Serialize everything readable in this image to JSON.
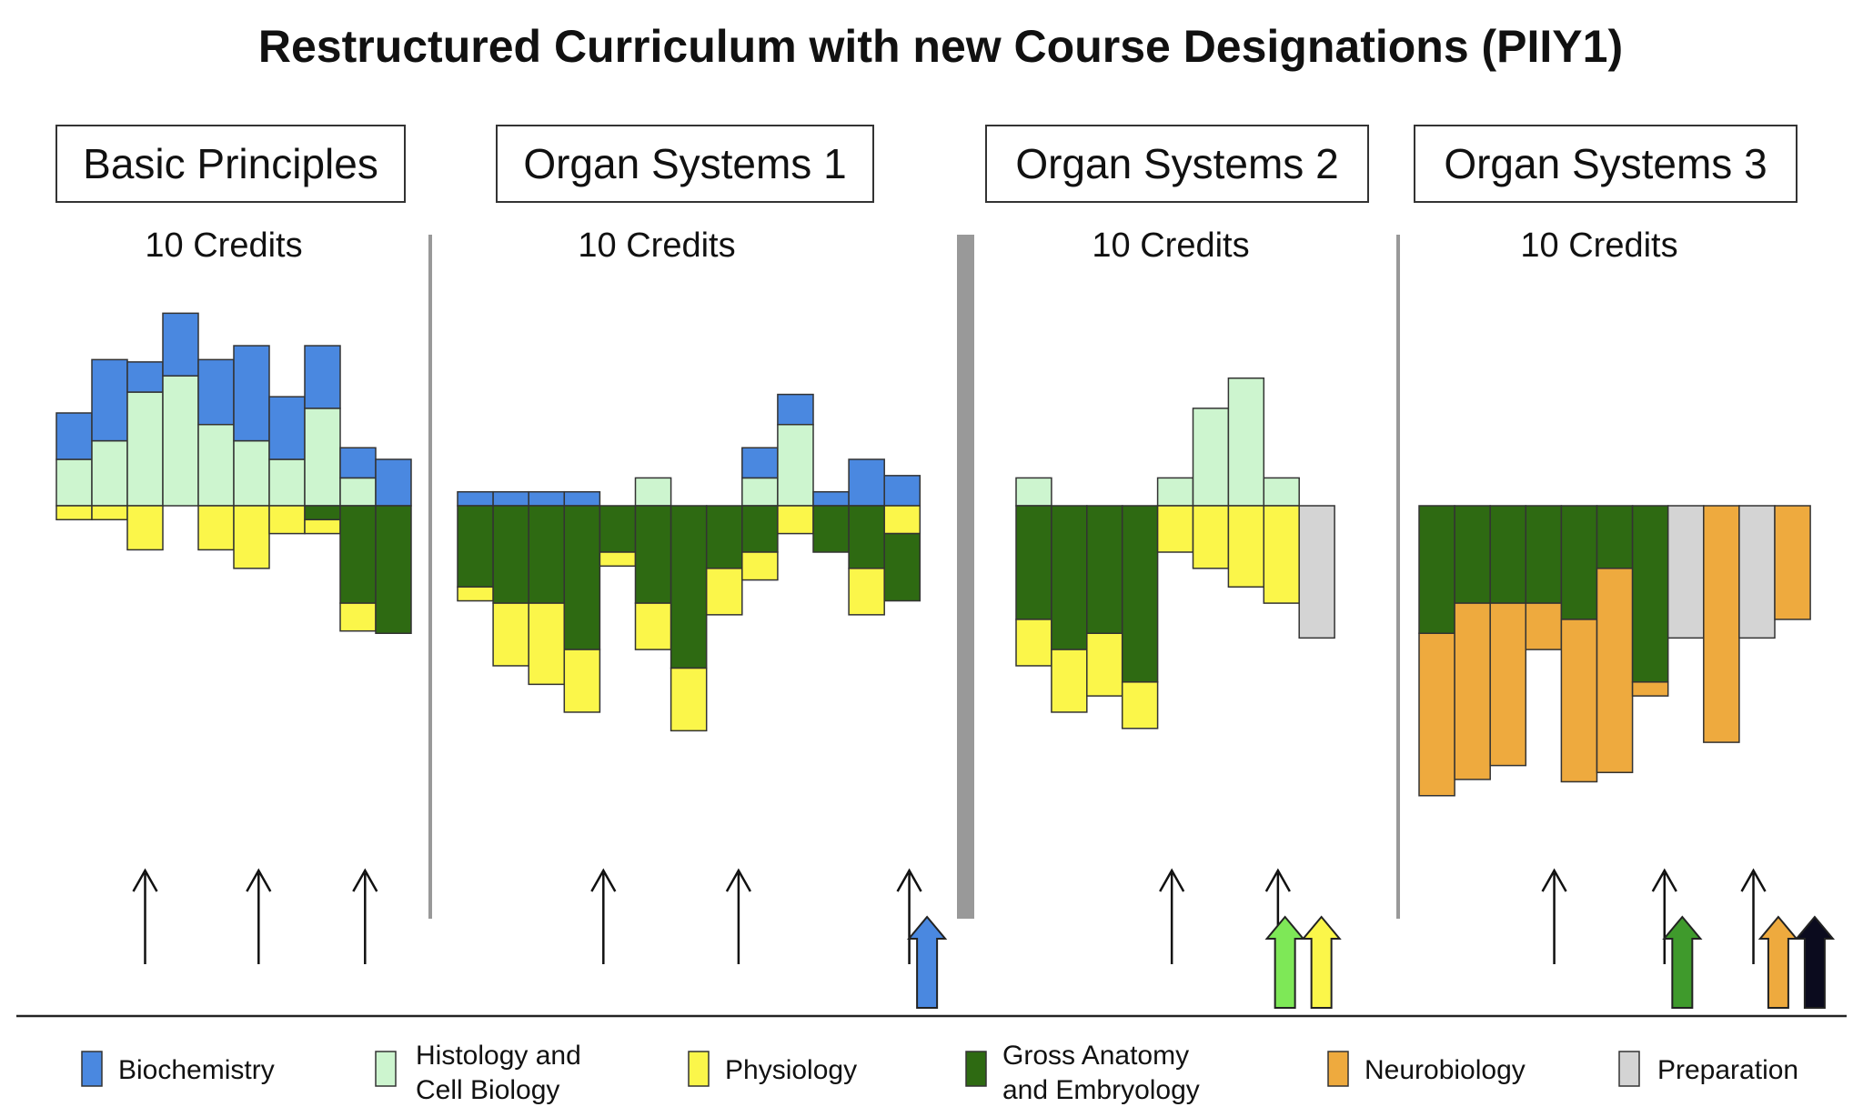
{
  "chart_data": {
    "type": "bar",
    "title": "Restructured Curriculum with new Course Designations (PIIY1)",
    "subjects": [
      {
        "key": "bio",
        "label": "Biochemistry",
        "color": "#4a88e0"
      },
      {
        "key": "hist",
        "label": "Histology and Cell Biology",
        "color": "#cdf5cf"
      },
      {
        "key": "phys",
        "label": "Physiology",
        "color": "#fbf64a"
      },
      {
        "key": "anat",
        "label": "Gross Anatomy and Embryology",
        "color": "#2e6a12"
      },
      {
        "key": "neuro",
        "label": "Neurobiology",
        "color": "#eeaa3e"
      },
      {
        "key": "prep",
        "label": "Preparation",
        "color": "#d4d4d4"
      }
    ],
    "blocks": [
      {
        "name": "Basic Principles",
        "credits": "10 Credits",
        "weeks": [
          {
            "up": {
              "hist": 2.0,
              "bio": 2.0
            },
            "down": {
              "phys": 0.6
            }
          },
          {
            "up": {
              "hist": 2.8,
              "bio": 3.5
            },
            "down": {
              "phys": 0.6
            }
          },
          {
            "up": {
              "hist": 4.9,
              "bio": 1.3
            },
            "down": {
              "phys": 1.9
            }
          },
          {
            "up": {
              "hist": 5.6,
              "bio": 2.7
            },
            "down": {}
          },
          {
            "up": {
              "hist": 3.5,
              "bio": 2.8
            },
            "down": {
              "phys": 1.9
            }
          },
          {
            "up": {
              "hist": 2.8,
              "bio": 4.1
            },
            "down": {
              "phys": 2.7
            }
          },
          {
            "up": {
              "hist": 2.0,
              "bio": 2.7
            },
            "down": {
              "phys": 1.2
            }
          },
          {
            "up": {
              "hist": 4.2,
              "bio": 2.7
            },
            "down": {
              "anat": 0.6,
              "phys": 0.6
            }
          },
          {
            "up": {
              "hist": 1.2,
              "bio": 1.3
            },
            "down": {
              "anat": 4.2,
              "phys": 1.2
            }
          },
          {
            "up": {
              "bio": 2.0
            },
            "down": {
              "anat": 5.5
            }
          }
        ]
      },
      {
        "name": "Organ Systems 1",
        "credits": "10 Credits",
        "weeks": [
          {
            "up": {
              "bio": 0.6
            },
            "down": {
              "anat": 3.5,
              "phys": 0.6
            }
          },
          {
            "up": {
              "bio": 0.6
            },
            "down": {
              "anat": 4.2,
              "phys": 2.7
            }
          },
          {
            "up": {
              "bio": 0.6
            },
            "down": {
              "anat": 4.2,
              "phys": 3.5
            }
          },
          {
            "up": {
              "bio": 0.6
            },
            "down": {
              "anat": 6.2,
              "phys": 2.7
            }
          },
          {
            "up": {},
            "down": {
              "anat": 2.0,
              "phys": 0.6
            }
          },
          {
            "up": {
              "hist": 1.2
            },
            "down": {
              "anat": 4.2,
              "phys": 2.0
            }
          },
          {
            "up": {},
            "down": {
              "anat": 7.0,
              "phys": 2.7
            }
          },
          {
            "up": {},
            "down": {
              "anat": 2.7,
              "phys": 2.0
            }
          },
          {
            "up": {
              "hist": 1.2,
              "bio": 1.3
            },
            "down": {
              "anat": 2.0,
              "phys": 1.2
            }
          },
          {
            "up": {
              "hist": 3.5,
              "bio": 1.3
            },
            "down": {
              "phys": 1.2
            }
          },
          {
            "up": {
              "bio": 0.6
            },
            "down": {
              "anat": 2.0
            }
          },
          {
            "up": {
              "bio": 2.0
            },
            "down": {
              "anat": 2.7,
              "phys": 2.0
            }
          },
          {
            "up": {
              "bio": 1.3
            },
            "down": {
              "phys": 1.2,
              "anat": 2.9
            }
          }
        ]
      },
      {
        "name": "Organ Systems 2",
        "credits": "10 Credits",
        "weeks": [
          {
            "up": {
              "hist": 1.2
            },
            "down": {
              "anat": 4.9,
              "phys": 2.0
            }
          },
          {
            "up": {},
            "down": {
              "anat": 6.2,
              "phys": 2.7
            }
          },
          {
            "up": {},
            "down": {
              "anat": 5.5,
              "phys": 2.7
            }
          },
          {
            "up": {},
            "down": {
              "anat": 7.6,
              "phys": 2.0
            }
          },
          {
            "up": {
              "hist": 1.2
            },
            "down": {
              "phys": 2.0
            }
          },
          {
            "up": {
              "hist": 4.2
            },
            "down": {
              "phys": 2.7
            }
          },
          {
            "up": {
              "hist": 5.5
            },
            "down": {
              "phys": 3.5
            }
          },
          {
            "up": {
              "hist": 1.2
            },
            "down": {
              "phys": 4.2
            }
          },
          {
            "up": {},
            "down": {
              "prep": 5.7
            }
          }
        ]
      },
      {
        "name": "Organ Systems 3",
        "credits": "10 Credits",
        "weeks": [
          {
            "up": {},
            "down": {
              "anat": 5.5,
              "neuro": 7.0
            }
          },
          {
            "up": {},
            "down": {
              "anat": 4.2,
              "neuro": 7.6
            }
          },
          {
            "up": {},
            "down": {
              "anat": 4.2,
              "neuro": 7.0
            }
          },
          {
            "up": {},
            "down": {
              "anat": 4.2,
              "neuro": 2.0
            }
          },
          {
            "up": {},
            "down": {
              "anat": 4.9,
              "neuro": 7.0
            }
          },
          {
            "up": {},
            "down": {
              "anat": 2.7,
              "neuro": 8.8
            }
          },
          {
            "up": {},
            "down": {
              "anat": 7.6,
              "neuro": 0.6
            }
          },
          {
            "up": {},
            "down": {
              "prep": 5.7
            }
          },
          {
            "up": {},
            "down": {
              "neuro": 10.2
            }
          },
          {
            "up": {},
            "down": {
              "prep": 5.7
            }
          },
          {
            "up": {},
            "down": {
              "neuro": 4.9
            }
          }
        ]
      }
    ],
    "exam_markers": [
      {
        "block": 0,
        "after_week": 2.5
      },
      {
        "block": 0,
        "after_week": 5.7
      },
      {
        "block": 0,
        "after_week": 8.7
      },
      {
        "block": 1,
        "after_week": 4.1
      },
      {
        "block": 1,
        "after_week": 7.9
      },
      {
        "block": 1,
        "after_week": 12.7
      },
      {
        "block": 2,
        "after_week": 4.4
      },
      {
        "block": 2,
        "after_week": 7.4
      },
      {
        "block": 3,
        "after_week": 3.8
      },
      {
        "block": 3,
        "after_week": 6.9
      },
      {
        "block": 3,
        "after_week": 9.4
      }
    ],
    "completion_markers": [
      {
        "block": 1,
        "after_week": 13.2,
        "subjects": [
          "bio"
        ]
      },
      {
        "block": 2,
        "after_week": 7.6,
        "subjects": [
          "hist",
          "phys"
        ]
      },
      {
        "block": 3,
        "after_week": 7.4,
        "subjects": [
          "anat"
        ]
      },
      {
        "block": 3,
        "after_week": 10.1,
        "subjects": [
          "neuro",
          "black"
        ]
      }
    ],
    "extra_colors": {
      "hist_arrow": "#7ee857",
      "anat_arrow": "#3f9a2c",
      "black": "#0b0b1e"
    }
  }
}
